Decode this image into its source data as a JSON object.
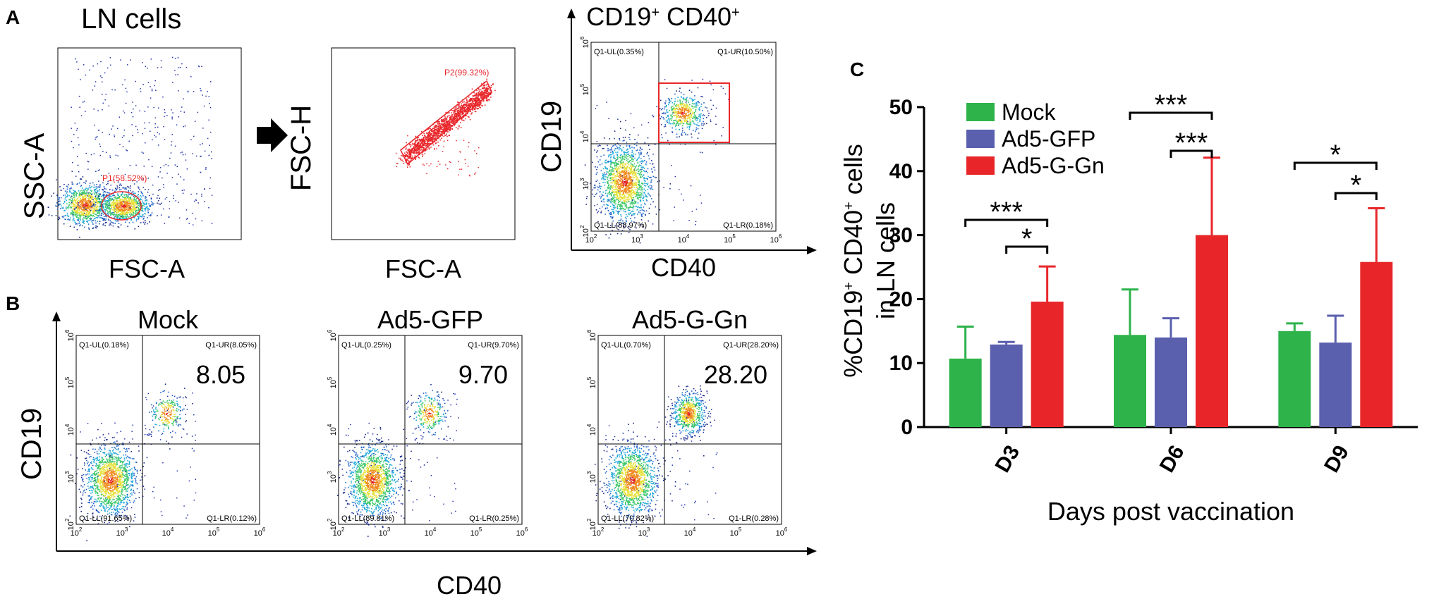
{
  "panels": {
    "a_label": "A",
    "b_label": "B",
    "c_label": "C",
    "ln_cells_title": "LN cells",
    "a1": {
      "ylabel": "SSC-A",
      "xlabel": "FSC-A",
      "gate": "P1(58.52%)"
    },
    "a2": {
      "ylabel": "FSC-H",
      "xlabel": "FSC-A",
      "gate": "P2(99.32%)"
    },
    "a3": {
      "title_main": "CD19",
      "title_sup1": "+",
      "title_mid": " CD40",
      "title_sup2": "+",
      "ylabel": "CD19",
      "xlabel": "CD40",
      "ul": "Q1-UL(0.35%)",
      "ur": "Q1-UR(10.50%)",
      "ll": "Q1-LL(88.97%)",
      "lr": "Q1-LR(0.18%)"
    },
    "b_ylabel": "CD19",
    "b_xlabel": "CD40",
    "b_plots": [
      {
        "title": "Mock",
        "value": "8.05",
        "ul": "Q1-UL(0.18%)",
        "ur": "Q1-UR(8.05%)",
        "ll": "Q1-LL(91.65%)",
        "lr": "Q1-LR(0.12%)"
      },
      {
        "title": "Ad5-GFP",
        "value": "9.70",
        "ul": "Q1-UL(0.25%)",
        "ur": "Q1-UR(9.70%)",
        "ll": "Q1-LL(89.81%)",
        "lr": "Q1-LR(0.25%)"
      },
      {
        "title": "Ad5-G-Gn",
        "value": "28.20",
        "ul": "Q1-UL(0.70%)",
        "ur": "Q1-UR(28.20%)",
        "ll": "Q1-LL(70.82%)",
        "lr": "Q1-LR(0.28%)"
      }
    ],
    "log_ticks": {
      "base": "10",
      "exps": [
        "2",
        "3",
        "4",
        "5",
        "6"
      ]
    }
  },
  "colors": {
    "mock": "#2db34a",
    "gfp": "#5a5fae",
    "ggn": "#e8262a",
    "gate": "#e8262a"
  },
  "chart_data": {
    "type": "bar",
    "title": "",
    "xlabel": "Days post vaccination",
    "ylabel_pre": "%CD19",
    "ylabel_sup1": "+",
    "ylabel_mid": " CD40",
    "ylabel_sup2": "+",
    "ylabel_post": " cells",
    "ylabel_line2": "in LN cells",
    "ylim": [
      0,
      50
    ],
    "yticks": [
      "0",
      "10",
      "20",
      "30",
      "40",
      "50"
    ],
    "categories": [
      "D3",
      "D6",
      "D9"
    ],
    "series": [
      {
        "name": "Mock",
        "color": "#2db34a",
        "values": [
          10.7,
          14.4,
          15.0
        ],
        "errors": [
          5.0,
          7.1,
          1.2
        ]
      },
      {
        "name": "Ad5-GFP",
        "color": "#5a5fae",
        "values": [
          12.9,
          14.0,
          13.2
        ],
        "errors": [
          0.4,
          3.0,
          4.2
        ]
      },
      {
        "name": "Ad5-G-Gn",
        "color": "#e8262a",
        "values": [
          19.6,
          30.0,
          25.8
        ],
        "errors": [
          5.5,
          12.1,
          8.4
        ]
      }
    ],
    "significance": [
      {
        "category": "D3",
        "from": "Mock",
        "to": "Ad5-G-Gn",
        "label": "***"
      },
      {
        "category": "D3",
        "from": "Ad5-GFP",
        "to": "Ad5-G-Gn",
        "label": "*"
      },
      {
        "category": "D6",
        "from": "Mock",
        "to": "Ad5-G-Gn",
        "label": "***"
      },
      {
        "category": "D6",
        "from": "Ad5-GFP",
        "to": "Ad5-G-Gn",
        "label": "***"
      },
      {
        "category": "D9",
        "from": "Mock",
        "to": "Ad5-G-Gn",
        "label": "*"
      },
      {
        "category": "D9",
        "from": "Ad5-GFP",
        "to": "Ad5-G-Gn",
        "label": "*"
      }
    ],
    "legend_position": "top-left"
  }
}
